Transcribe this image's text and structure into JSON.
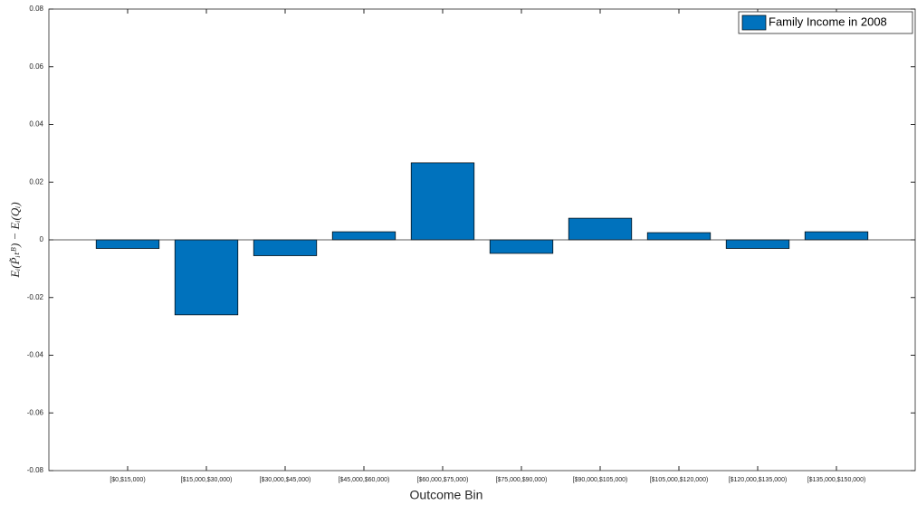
{
  "chart_data": {
    "type": "bar",
    "xlabel": "Outcome Bin",
    "ylabel": "Eᵢ(P̃ᵢₜᴮ) − Eᵢ(Qᵢ)",
    "categories": [
      "[$0,$15,000)",
      "[$15,000,$30,000)",
      "[$30,000,$45,000)",
      "[$45,000,$60,000)",
      "[$60,000,$75,000)",
      "[$75,000,$90,000)",
      "[$90,000,$105,000)",
      "[$105,000,$120,000)",
      "[$120,000,$135,000)",
      "[$135,000,$150,000)"
    ],
    "series": [
      {
        "name": "Family Income in 2008",
        "color": "#0072bd",
        "values": [
          -0.003,
          -0.026,
          -0.0055,
          0.0028,
          0.0267,
          -0.0047,
          0.0075,
          0.0025,
          -0.003,
          0.0028
        ]
      }
    ],
    "ylim": [
      -0.08,
      0.08
    ],
    "yticks": [
      -0.08,
      -0.06,
      -0.04,
      -0.02,
      0,
      0.02,
      0.04,
      0.06,
      0.08
    ],
    "grid": false,
    "legend": "top-right"
  }
}
